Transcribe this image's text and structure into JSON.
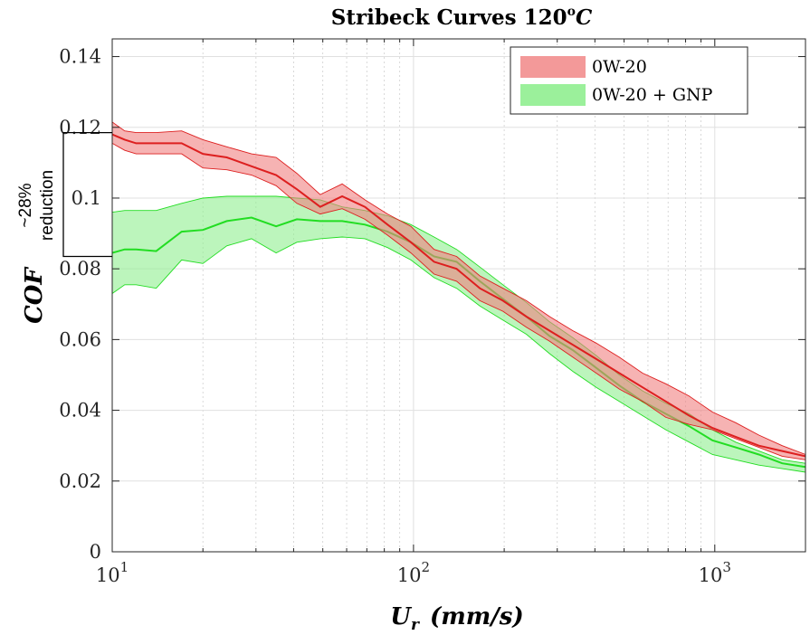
{
  "chart_data": {
    "type": "area",
    "title": "Stribeck Curves 120",
    "title_sup": "o",
    "title_suffix": "C",
    "xlabel": "U",
    "xlabel_sub": "r",
    "xlabel_units": "(mm/s)",
    "ylabel": "COF",
    "xscale": "log",
    "xlim": [
      10,
      2000
    ],
    "ylim": [
      0,
      0.145
    ],
    "yticks": [
      "0",
      "0.02",
      "0.04",
      "0.06",
      "0.08",
      "0.1",
      "0.12",
      "0.14"
    ],
    "xticks": [
      {
        "value": 10,
        "base": "10",
        "exp": "1"
      },
      {
        "value": 100,
        "base": "10",
        "exp": "2"
      },
      {
        "value": 1000,
        "base": "10",
        "exp": "3"
      }
    ],
    "grid": true,
    "legend_position": "top-right",
    "series": [
      {
        "name": "0W-20",
        "color": "#dd1f1f",
        "fill": "#f08080",
        "x": [
          10,
          11,
          12,
          14,
          17,
          20,
          24,
          29,
          35,
          41,
          49,
          58,
          69,
          82,
          98,
          117,
          139,
          166,
          198,
          237,
          283,
          338,
          404,
          482,
          576,
          688,
          822,
          982,
          1173,
          1401,
          1674,
          2000
        ],
        "mean": [
          0.118,
          0.1165,
          0.1155,
          0.1155,
          0.1155,
          0.1125,
          0.1115,
          0.109,
          0.1065,
          0.1025,
          0.0975,
          0.1005,
          0.0975,
          0.0925,
          0.0875,
          0.082,
          0.08,
          0.0745,
          0.071,
          0.0665,
          0.0625,
          0.0585,
          0.0545,
          0.0505,
          0.0465,
          0.0425,
          0.0385,
          0.035,
          0.0325,
          0.03,
          0.0285,
          0.027
        ],
        "upper": [
          0.1215,
          0.119,
          0.1185,
          0.1185,
          0.119,
          0.1165,
          0.1145,
          0.1125,
          0.1115,
          0.107,
          0.101,
          0.104,
          0.0995,
          0.0955,
          0.092,
          0.0855,
          0.0835,
          0.078,
          0.0745,
          0.071,
          0.0665,
          0.0625,
          0.059,
          0.055,
          0.0505,
          0.0475,
          0.044,
          0.0395,
          0.0365,
          0.033,
          0.03,
          0.0275
        ],
        "lower": [
          0.1155,
          0.1135,
          0.1125,
          0.1125,
          0.1125,
          0.1085,
          0.108,
          0.1065,
          0.1035,
          0.0985,
          0.0955,
          0.097,
          0.094,
          0.0895,
          0.0845,
          0.0785,
          0.0765,
          0.071,
          0.068,
          0.0635,
          0.0595,
          0.055,
          0.0505,
          0.046,
          0.0425,
          0.038,
          0.036,
          0.0345,
          0.032,
          0.0295,
          0.027,
          0.026
        ]
      },
      {
        "name": "0W-20 + GNP",
        "color": "#22dd22",
        "fill": "#90ee90",
        "x": [
          10,
          11,
          12,
          14,
          17,
          20,
          24,
          29,
          35,
          41,
          49,
          58,
          69,
          82,
          98,
          117,
          139,
          166,
          198,
          237,
          283,
          338,
          404,
          482,
          576,
          688,
          822,
          982,
          1173,
          1401,
          1674,
          2000
        ],
        "mean": [
          0.0845,
          0.0855,
          0.0855,
          0.085,
          0.0905,
          0.091,
          0.0935,
          0.0945,
          0.092,
          0.094,
          0.0935,
          0.0935,
          0.0925,
          0.0905,
          0.0875,
          0.0835,
          0.082,
          0.0765,
          0.0715,
          0.0665,
          0.061,
          0.057,
          0.052,
          0.047,
          0.0425,
          0.039,
          0.0355,
          0.0315,
          0.0295,
          0.0275,
          0.025,
          0.024
        ],
        "upper": [
          0.096,
          0.0965,
          0.0965,
          0.0965,
          0.0985,
          0.1,
          0.1005,
          0.1005,
          0.1005,
          0.1,
          0.0995,
          0.0975,
          0.0965,
          0.095,
          0.0925,
          0.089,
          0.0855,
          0.0805,
          0.0755,
          0.0705,
          0.065,
          0.0605,
          0.0555,
          0.05,
          0.0455,
          0.042,
          0.039,
          0.0345,
          0.031,
          0.0285,
          0.026,
          0.025
        ],
        "lower": [
          0.073,
          0.0755,
          0.0755,
          0.0745,
          0.0825,
          0.0815,
          0.0865,
          0.0885,
          0.0845,
          0.0875,
          0.0885,
          0.089,
          0.0885,
          0.086,
          0.0825,
          0.0775,
          0.0745,
          0.0695,
          0.0655,
          0.0615,
          0.056,
          0.051,
          0.0465,
          0.0425,
          0.0385,
          0.0345,
          0.031,
          0.0275,
          0.026,
          0.0245,
          0.0235,
          0.0225
        ]
      }
    ],
    "annotation": {
      "text_line1": "~28%",
      "text_line2": "reduction",
      "y_top": 0.1185,
      "y_bottom": 0.0835
    }
  }
}
